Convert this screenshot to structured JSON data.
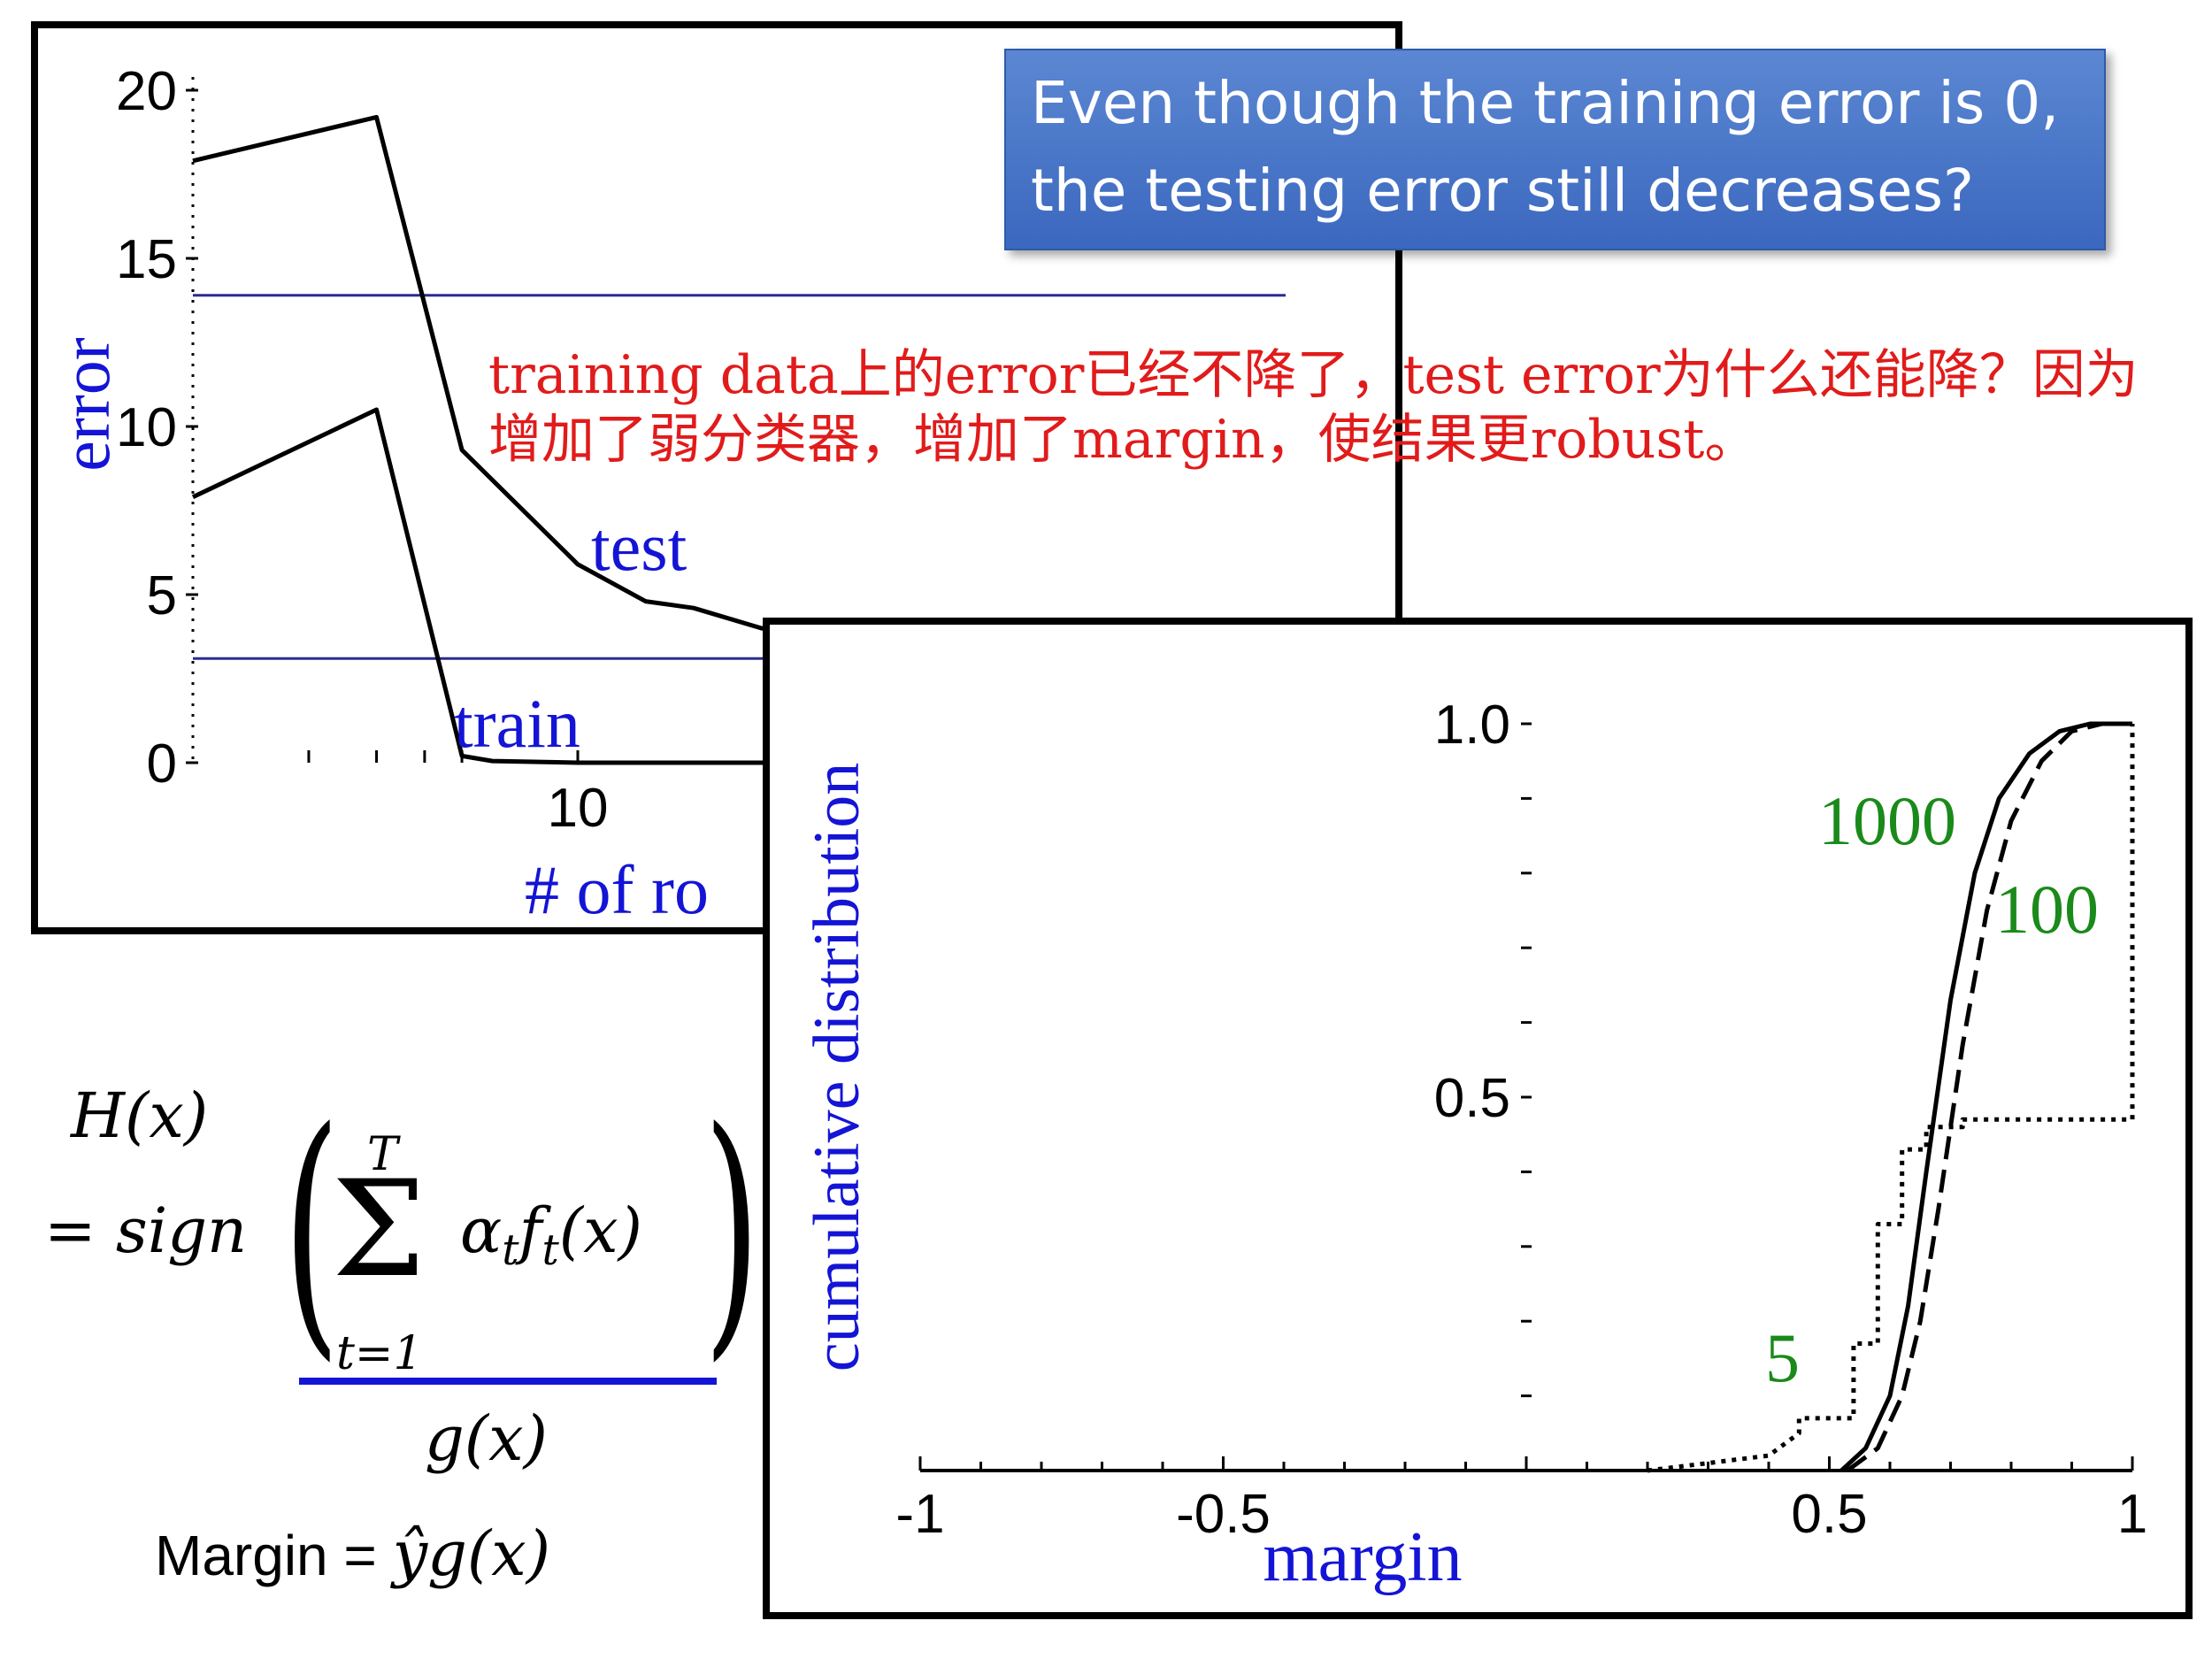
{
  "chart_data": [
    {
      "type": "line",
      "ylabel": "error",
      "xlabel": "# of rounds",
      "xlabel_visible": "# of ro",
      "y_ticks": [
        "0",
        "5",
        "10",
        "15",
        "20"
      ],
      "x_ticks": [
        "10"
      ],
      "ylim": [
        0,
        20
      ],
      "xlim": [
        1,
        1000
      ],
      "x_scale": "log",
      "series": [
        {
          "name": "test",
          "x": [
            1,
            3,
            5,
            10,
            15,
            20,
            30,
            50
          ],
          "y": [
            17.9,
            19.2,
            9.3,
            5.9,
            4.8,
            4.6,
            4.0,
            3.6
          ]
        },
        {
          "name": "train",
          "x": [
            1,
            3,
            5,
            6,
            10,
            20,
            50
          ],
          "y": [
            7.9,
            10.5,
            0.2,
            0.05,
            0,
            0,
            0
          ]
        }
      ],
      "reference_lines": [
        13.9,
        3.1
      ]
    },
    {
      "type": "line",
      "xlabel": "margin",
      "ylabel": "cumulative distribution",
      "x_ticks": [
        "-1",
        "-0.5",
        "0.5",
        "1"
      ],
      "y_ticks": [
        "0.5",
        "1.0"
      ],
      "xlim": [
        -1,
        1
      ],
      "ylim": [
        0,
        1
      ],
      "series": [
        {
          "name": "5",
          "style": "dotted",
          "x": [
            0.2,
            0.3,
            0.4,
            0.45,
            0.45,
            0.54,
            0.54,
            0.58,
            0.58,
            0.62,
            0.62,
            0.66,
            0.66,
            0.72,
            0.72,
            0.86,
            0.86,
            1.0,
            1.0
          ],
          "y": [
            0,
            0.01,
            0.02,
            0.05,
            0.07,
            0.07,
            0.17,
            0.17,
            0.33,
            0.33,
            0.43,
            0.43,
            0.46,
            0.46,
            0.47,
            0.47,
            0.47,
            0.47,
            1.0
          ]
        },
        {
          "name": "100",
          "style": "dashed",
          "x": [
            0.53,
            0.58,
            0.62,
            0.65,
            0.68,
            0.72,
            0.76,
            0.8,
            0.85,
            0.9,
            0.95,
            1.0
          ],
          "y": [
            0,
            0.03,
            0.1,
            0.2,
            0.35,
            0.57,
            0.75,
            0.87,
            0.95,
            0.99,
            1.0,
            1.0
          ]
        },
        {
          "name": "1000",
          "style": "solid",
          "x": [
            0.52,
            0.56,
            0.6,
            0.63,
            0.66,
            0.7,
            0.74,
            0.78,
            0.83,
            0.88,
            0.93,
            1.0
          ],
          "y": [
            0,
            0.03,
            0.1,
            0.22,
            0.4,
            0.63,
            0.8,
            0.9,
            0.96,
            0.99,
            1.0,
            1.0
          ]
        }
      ]
    }
  ],
  "callout": {
    "line1": "Even though the training error is 0,",
    "line2": "the testing error still decreases?"
  },
  "note": "training data上的error已经不降了，test error为什么还能降？因为增加了弱分类器，增加了margin，使结果更robust。",
  "formula": {
    "lhs": "H(x)",
    "eq_sign": "= sign",
    "sum_upper": "T",
    "sum_lower": "t=1",
    "summand_alpha": "α",
    "summand_sub": "t",
    "summand_f": "f",
    "summand_arg": "(x)",
    "underbrace_label": "g(x)",
    "margin_label": "Margin = ",
    "margin_expr": "ŷg(x)"
  },
  "colors": {
    "axis_label": "#1414d6",
    "series_label_chart2": "#1a8a1a",
    "note": "#e11b1b",
    "callout_bg": "#4a78c8",
    "reference_line": "#2b2b8f"
  }
}
